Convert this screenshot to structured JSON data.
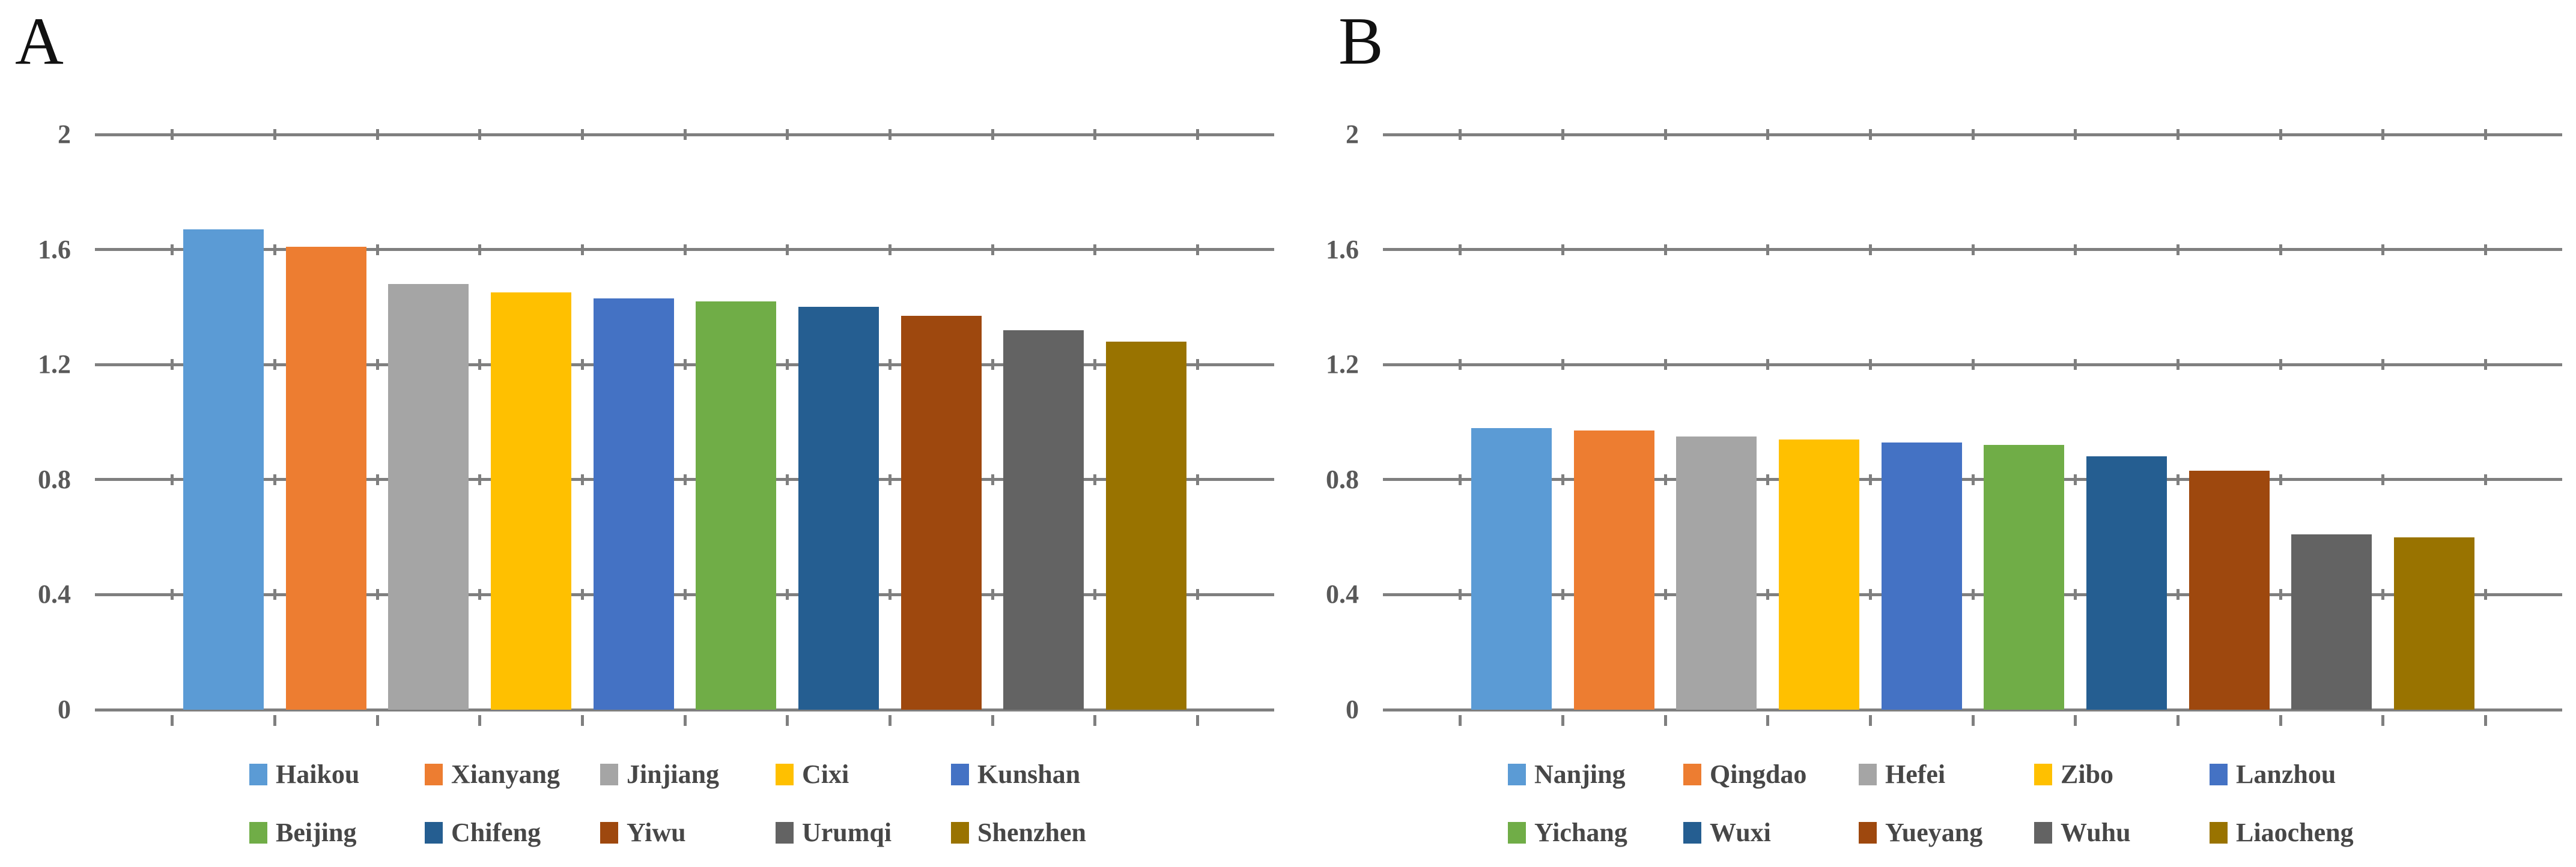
{
  "figure": {
    "background": "#FFFFFF"
  },
  "styles": {
    "grid_color": "#7F7F7F",
    "axis_tick_label_color": "#595959",
    "legend_text_color": "#474747",
    "panel_label_color": "#111111"
  },
  "chart_data": [
    {
      "type": "bar",
      "panel": "A",
      "title": "",
      "xlabel": "",
      "ylabel": "",
      "categories": [
        "Haikou",
        "Xianyang",
        "Jinjiang",
        "Cixi",
        "Kunshan",
        "Beijing",
        "Chifeng",
        "Yiwu",
        "Urumqi",
        "Shenzhen"
      ],
      "values": [
        1.67,
        1.61,
        1.48,
        1.45,
        1.43,
        1.42,
        1.4,
        1.37,
        1.32,
        1.28
      ],
      "bar_colors": [
        "#5B9BD5",
        "#ED7D31",
        "#A5A5A5",
        "#FFC000",
        "#4472C4",
        "#70AD47",
        "#255E91",
        "#9E480E",
        "#636363",
        "#997300"
      ],
      "ylim": [
        0,
        2
      ],
      "yticks": [
        2,
        1.6,
        1.2,
        0.8,
        0.4,
        0
      ],
      "ytick_labels": [
        "2",
        "1.6",
        "1.2",
        "0.8",
        "0.4",
        "0"
      ],
      "grid": true,
      "legend_position": "bottom",
      "legend_columns": 5
    },
    {
      "type": "bar",
      "panel": "B",
      "title": "",
      "xlabel": "",
      "ylabel": "",
      "categories": [
        "Nanjing",
        "Qingdao",
        "Hefei",
        "Zibo",
        "Lanzhou",
        "Yichang",
        "Wuxi",
        "Yueyang",
        "Wuhu",
        "Liaocheng"
      ],
      "values": [
        0.98,
        0.97,
        0.95,
        0.94,
        0.93,
        0.92,
        0.88,
        0.83,
        0.61,
        0.6
      ],
      "bar_colors": [
        "#5B9BD5",
        "#ED7D31",
        "#A5A5A5",
        "#FFC000",
        "#4472C4",
        "#70AD47",
        "#255E91",
        "#9E480E",
        "#636363",
        "#997300"
      ],
      "ylim": [
        0,
        2
      ],
      "yticks": [
        2,
        1.6,
        1.2,
        0.8,
        0.4,
        0
      ],
      "ytick_labels": [
        "2",
        "1.6",
        "1.2",
        "0.8",
        "0.4",
        "0"
      ],
      "grid": true,
      "legend_position": "bottom",
      "legend_columns": 5
    }
  ]
}
